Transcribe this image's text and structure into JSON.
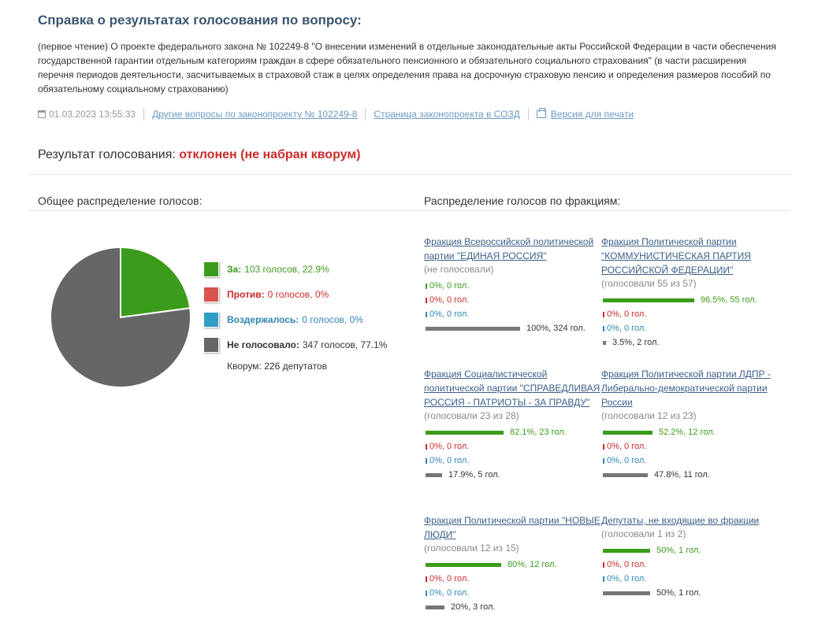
{
  "title": "Справка о результатах голосования по вопросу:",
  "question": "(первое чтение) О проекте федерального закона № 102249-8 \"О внесении изменений в отдельные законодательные акты Российской Федерации в части обеспечения государственной гарантии отдельным категориям граждан в сфере обязательного пенсионного и обязательного социального страхования\" (в части расширения перечня периодов деятельности, засчитываемых в страховой стаж в целях определения права на досрочную страховую пенсию и определения размеров пособий по обязательному социальному страхованию)",
  "meta": {
    "datetime": "01.03.2023 13:55:33",
    "link_other": "Другие вопросы по законопроекту № 102249-8",
    "link_sozd": "Страница законопроекта в СОЗД",
    "link_print": "Версия для печати"
  },
  "result": {
    "label": "Результат голосования:",
    "status": "отклонен (не набран кворум)"
  },
  "overall": {
    "heading": "Общее распределение голосов:",
    "legend": [
      {
        "key": "for",
        "label": "За:",
        "text": "103 голосов, 22.9%",
        "color": "#3a9c1a"
      },
      {
        "key": "against",
        "label": "Против:",
        "text": "0 голосов, 0%",
        "color": "#d9534f"
      },
      {
        "key": "abstain",
        "label": "Воздержалось:",
        "text": "0 голосов, 0%",
        "color": "#2f9ec2"
      },
      {
        "key": "none",
        "label": "Не голосовало:",
        "text": "347 голосов, 77.1%",
        "color": "#666666"
      }
    ],
    "quorum": "Кворум: 226 депутатов",
    "pie_values": {
      "for": 22.9,
      "against": 0,
      "abstain": 0,
      "none": 77.1
    }
  },
  "factions_heading": "Распределение голосов по фракциям:",
  "factions": [
    {
      "name": "Фракция Всероссийской политической партии \"ЕДИНАЯ РОССИЯ\"",
      "stat": "(не голосовали)",
      "rows": [
        {
          "type": "for",
          "pct": 0,
          "text": "0%, 0 гол."
        },
        {
          "type": "against",
          "pct": 0,
          "text": "0%, 0 гол."
        },
        {
          "type": "abstain",
          "pct": 0,
          "text": "0%, 0 гол."
        },
        {
          "type": "none",
          "pct": 100,
          "text": "100%, 324 гол."
        }
      ]
    },
    {
      "name": "Фракция Политической партии \"КОММУНИСТИЧЕСКАЯ ПАРТИЯ РОССИЙСКОЙ ФЕДЕРАЦИИ\"",
      "stat": "(голосовали 55 из 57)",
      "rows": [
        {
          "type": "for",
          "pct": 96.5,
          "text": "96.5%, 55 гол."
        },
        {
          "type": "against",
          "pct": 0,
          "text": "0%, 0 гол."
        },
        {
          "type": "abstain",
          "pct": 0,
          "text": "0%, 0 гол."
        },
        {
          "type": "none",
          "pct": 3.5,
          "text": "3.5%, 2 гол."
        }
      ]
    },
    {
      "name": "Фракция Социалистической политической партии \"СПРАВЕДЛИВАЯ РОССИЯ - ПАТРИОТЫ - ЗА ПРАВДУ\"",
      "stat": "(голосовали 23 из 28)",
      "rows": [
        {
          "type": "for",
          "pct": 82.1,
          "text": "82.1%, 23 гол."
        },
        {
          "type": "against",
          "pct": 0,
          "text": "0%, 0 гол."
        },
        {
          "type": "abstain",
          "pct": 0,
          "text": "0%, 0 гол."
        },
        {
          "type": "none",
          "pct": 17.9,
          "text": "17.9%, 5 гол."
        }
      ]
    },
    {
      "name": "Фракция Политической партии ЛДПР - Либерально-демократической партии России",
      "stat": "(голосовали 12 из 23)",
      "rows": [
        {
          "type": "for",
          "pct": 52.2,
          "text": "52.2%, 12 гол."
        },
        {
          "type": "against",
          "pct": 0,
          "text": "0%, 0 гол."
        },
        {
          "type": "abstain",
          "pct": 0,
          "text": "0%, 0 гол."
        },
        {
          "type": "none",
          "pct": 47.8,
          "text": "47.8%, 11 гол."
        }
      ]
    },
    {
      "name": "Фракция Политической партии \"НОВЫЕ ЛЮДИ\"",
      "stat": "(голосовали 12 из 15)",
      "rows": [
        {
          "type": "for",
          "pct": 80,
          "text": "80%, 12 гол."
        },
        {
          "type": "against",
          "pct": 0,
          "text": "0%, 0 гол."
        },
        {
          "type": "abstain",
          "pct": 0,
          "text": "0%, 0 гол."
        },
        {
          "type": "none",
          "pct": 20,
          "text": "20%, 3 гол."
        }
      ]
    },
    {
      "name": "Депутаты, не входящие во фракции",
      "stat": "(голосовали 1 из 2)",
      "rows": [
        {
          "type": "for",
          "pct": 50,
          "text": "50%, 1 гол."
        },
        {
          "type": "against",
          "pct": 0,
          "text": "0%, 0 гол."
        },
        {
          "type": "abstain",
          "pct": 0,
          "text": "0%, 0 гол."
        },
        {
          "type": "none",
          "pct": 50,
          "text": "50%, 1 гол."
        }
      ]
    }
  ]
}
